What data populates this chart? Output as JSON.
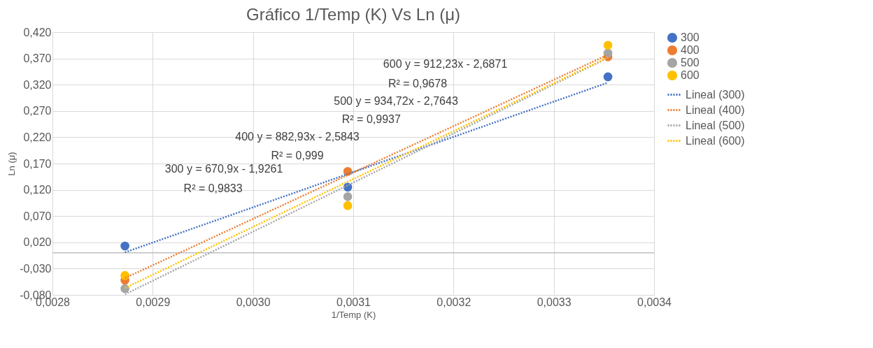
{
  "chart_data": {
    "type": "scatter",
    "title": "Gráfico 1/Temp (K) Vs Ln (μ)",
    "xlabel": "1/Temp (K)",
    "ylabel": "Ln (μ)",
    "series": [
      {
        "name": "300",
        "marker": "circle",
        "color": "#4472c4",
        "x": [
          0.0028723,
          0.0030945,
          0.003354
        ],
        "values": [
          0.013,
          0.125,
          0.335
        ]
      },
      {
        "name": "400",
        "marker": "circle",
        "color": "#ed7d31",
        "x": [
          0.0028723,
          0.0030945,
          0.003354
        ],
        "values": [
          -0.052,
          0.155,
          0.373
        ]
      },
      {
        "name": "500",
        "marker": "circle",
        "color": "#a5a5a5",
        "x": [
          0.0028723,
          0.0030945,
          0.003354
        ],
        "values": [
          -0.068,
          0.107,
          0.38
        ]
      },
      {
        "name": "600",
        "marker": "circle",
        "color": "#ffc000",
        "x": [
          0.0028723,
          0.0030945,
          0.003354
        ],
        "values": [
          -0.043,
          0.09,
          0.395
        ]
      },
      {
        "name": "Lineal (300)",
        "type": "line",
        "line_style": "dotted",
        "color": "#4472c4",
        "x": [
          0.0028723,
          0.003354
        ],
        "values": [
          0.001,
          0.324
        ]
      },
      {
        "name": "Lineal (400)",
        "type": "line",
        "line_style": "dotted",
        "color": "#ed7d31",
        "x": [
          0.0028723,
          0.003354
        ],
        "values": [
          -0.048,
          0.377
        ]
      },
      {
        "name": "Lineal (500)",
        "type": "line",
        "line_style": "dotted",
        "color": "#a5a5a5",
        "x": [
          0.0028723,
          0.003354
        ],
        "values": [
          -0.079,
          0.371
        ]
      },
      {
        "name": "Lineal (600)",
        "type": "line",
        "line_style": "dotted",
        "color": "#ffc000",
        "x": [
          0.0028723,
          0.003354
        ],
        "values": [
          -0.067,
          0.372
        ]
      }
    ],
    "xlim": [
      0.0028,
      0.0034
    ],
    "xticks": [
      {
        "value": 0.0028,
        "label": "0,0028"
      },
      {
        "value": 0.0029,
        "label": "0,0029"
      },
      {
        "value": 0.003,
        "label": "0,0030"
      },
      {
        "value": 0.0031,
        "label": "0,0031"
      },
      {
        "value": 0.0032,
        "label": "0,0032"
      },
      {
        "value": 0.0033,
        "label": "0,0033"
      },
      {
        "value": 0.0034,
        "label": "0,0034"
      }
    ],
    "ylim": [
      -0.08,
      0.42
    ],
    "yticks": [
      {
        "value": -0.08,
        "label": "-0,080"
      },
      {
        "value": -0.03,
        "label": "-0,030"
      },
      {
        "value": 0.02,
        "label": "0,020"
      },
      {
        "value": 0.07,
        "label": "0,070"
      },
      {
        "value": 0.12,
        "label": "0,120"
      },
      {
        "value": 0.17,
        "label": "0,170"
      },
      {
        "value": 0.22,
        "label": "0,220"
      },
      {
        "value": 0.27,
        "label": "0,270"
      },
      {
        "value": 0.32,
        "label": "0,320"
      },
      {
        "value": 0.37,
        "label": "0,370"
      },
      {
        "value": 0.42,
        "label": "0,420"
      }
    ],
    "ref_lines": [
      {
        "axis": "y",
        "value": 0,
        "color": "#bfbfbf"
      }
    ],
    "annotations": [
      "300   y = 670,9x - 1,9261",
      "R² = 0,9833",
      "400   y = 882,93x - 2,5843",
      "R² = 0,999",
      "500   y = 934,72x - 2,7643",
      "R² = 0,9937",
      "600   y = 912,23x - 2,6871",
      "R² = 0,9678"
    ],
    "grid": true,
    "legend": "right"
  }
}
